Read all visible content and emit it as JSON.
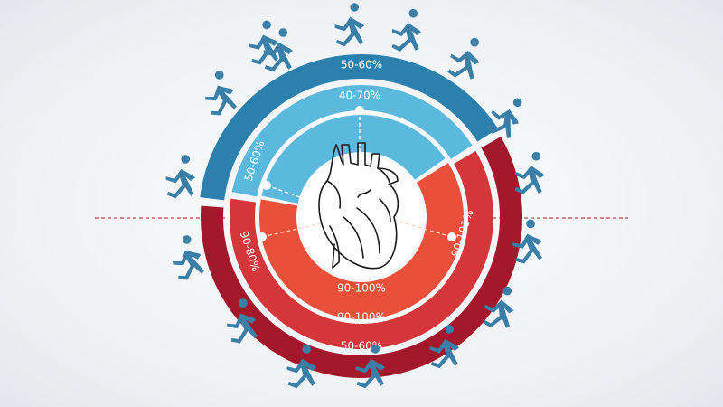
{
  "colors": {
    "outer_blue": "#2b80ae",
    "light_blue": "#5cb9de",
    "dark_red": "#a3182a",
    "mid_red": "#d5363a",
    "orange_red": "#e8503a",
    "runner": "#3a7fa8",
    "guide_line": "#d0404a"
  },
  "rings": {
    "outer_blue_label": "50-60%",
    "outer_red_label": "50-60%",
    "middle_blue_label": "40-70%",
    "middle_red_left_label": "90-80%",
    "middle_red_right_label": "90-101%",
    "middle_red_bottom_label": "90-100%",
    "inner_blue_label": "50-60%",
    "inner_red_label": "90-100%"
  },
  "center_icon": "anatomical-heart-icon",
  "runner_icon": "runner-icon"
}
